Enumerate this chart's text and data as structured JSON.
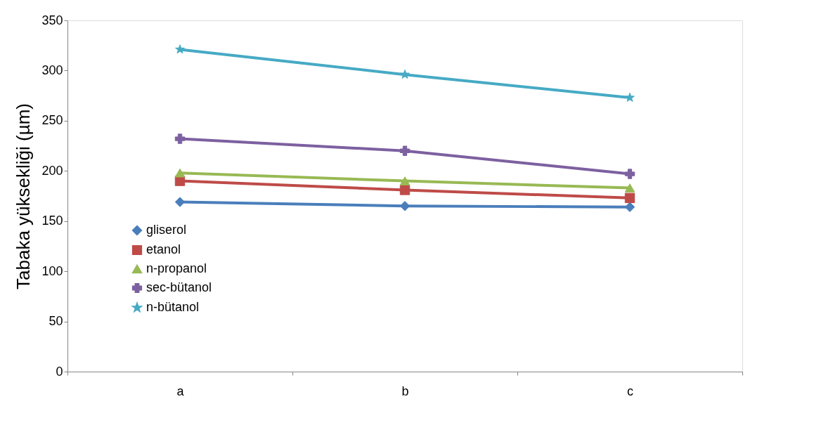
{
  "chart_data": {
    "type": "line",
    "ylabel": "Tabaka yüksekliği (µm)",
    "categories": [
      "a",
      "b",
      "c"
    ],
    "ylim": [
      0,
      350
    ],
    "yticks": [
      0,
      50,
      100,
      150,
      200,
      250,
      300,
      350
    ],
    "grid": false,
    "legend": "left",
    "series": [
      {
        "name": "gliserol",
        "color": "#4a7ebb",
        "marker": "diamond",
        "values": [
          169,
          165,
          164
        ]
      },
      {
        "name": "etanol",
        "color": "#be4b48",
        "marker": "square",
        "values": [
          190,
          181,
          173
        ]
      },
      {
        "name": "n-propanol",
        "color": "#98b954",
        "marker": "triangle",
        "values": [
          198,
          190,
          183
        ]
      },
      {
        "name": "sec-bütanol",
        "color": "#7d60a0",
        "marker": "cross",
        "values": [
          232,
          220,
          197
        ]
      },
      {
        "name": "n-bütanol",
        "color": "#46aac5",
        "marker": "star",
        "values": [
          321,
          296,
          273
        ]
      }
    ]
  }
}
